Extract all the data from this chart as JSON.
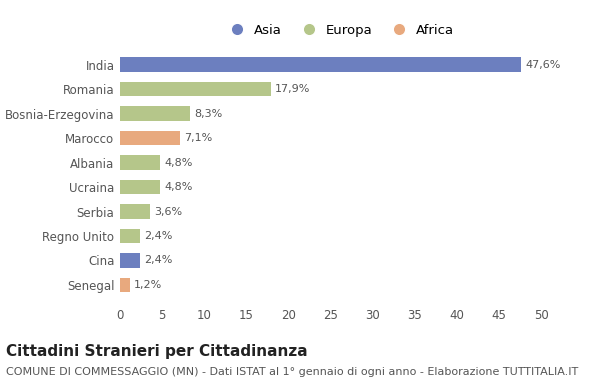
{
  "categories": [
    "India",
    "Romania",
    "Bosnia-Erzegovina",
    "Marocco",
    "Albania",
    "Ucraina",
    "Serbia",
    "Regno Unito",
    "Cina",
    "Senegal"
  ],
  "values": [
    47.6,
    17.9,
    8.3,
    7.1,
    4.8,
    4.8,
    3.6,
    2.4,
    2.4,
    1.2
  ],
  "labels": [
    "47,6%",
    "17,9%",
    "8,3%",
    "7,1%",
    "4,8%",
    "4,8%",
    "3,6%",
    "2,4%",
    "2,4%",
    "1,2%"
  ],
  "colors": [
    "#6c7fbf",
    "#b5c68a",
    "#b5c68a",
    "#e8a97e",
    "#b5c68a",
    "#b5c68a",
    "#b5c68a",
    "#b5c68a",
    "#6c7fbf",
    "#e8a97e"
  ],
  "legend_labels": [
    "Asia",
    "Europa",
    "Africa"
  ],
  "legend_colors": [
    "#6c7fbf",
    "#b5c68a",
    "#e8a97e"
  ],
  "title": "Cittadini Stranieri per Cittadinanza",
  "subtitle": "COMUNE DI COMMESSAGGIO (MN) - Dati ISTAT al 1° gennaio di ogni anno - Elaborazione TUTTITALIA.IT",
  "xlim": [
    0,
    52
  ],
  "xticks": [
    0,
    5,
    10,
    15,
    20,
    25,
    30,
    35,
    40,
    45,
    50
  ],
  "background_color": "#ffffff",
  "bar_height": 0.6,
  "title_fontsize": 11,
  "subtitle_fontsize": 8,
  "label_fontsize": 8,
  "tick_fontsize": 8.5,
  "legend_fontsize": 9.5
}
